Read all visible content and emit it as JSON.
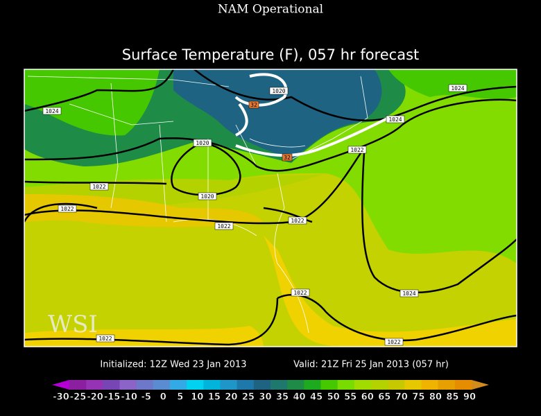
{
  "header": {
    "model": "NAM Operational",
    "title": "Surface Temperature (F), 057 hr forecast"
  },
  "footer": {
    "initialized": "Initialized: 12Z Wed 23 Jan 2013",
    "valid": "Valid: 21Z Fri 25 Jan 2013 (057 hr)"
  },
  "logo": "WSI",
  "contour_labels": [
    "1024",
    "1020",
    "1024",
    "1024",
    "1020",
    "1022",
    "1022",
    "1020",
    "1022",
    "1022",
    "1022",
    "1024",
    "1022",
    "1022",
    "1022",
    "32",
    "32"
  ],
  "colorbar": {
    "labels": [
      -30,
      -25,
      -20,
      -15,
      -10,
      -5,
      0,
      5,
      10,
      15,
      20,
      25,
      30,
      35,
      40,
      45,
      50,
      55,
      60,
      65,
      70,
      75,
      80,
      85,
      90
    ],
    "low_color": "#b400d2",
    "high_color": "#d28c1e",
    "colors": [
      "#8c1ea0",
      "#9632b4",
      "#7846b4",
      "#8c64c8",
      "#6e78c8",
      "#5a8cd2",
      "#32aae6",
      "#00d2f0",
      "#00b4dc",
      "#1e96c8",
      "#1e78aa",
      "#1e6482",
      "#1e786e",
      "#1e8c46",
      "#1eaa1e",
      "#46c800",
      "#78dc00",
      "#a0dc00",
      "#b4d200",
      "#c8c800",
      "#e6c800",
      "#f0b400",
      "#e6a000",
      "#e68c00"
    ]
  }
}
